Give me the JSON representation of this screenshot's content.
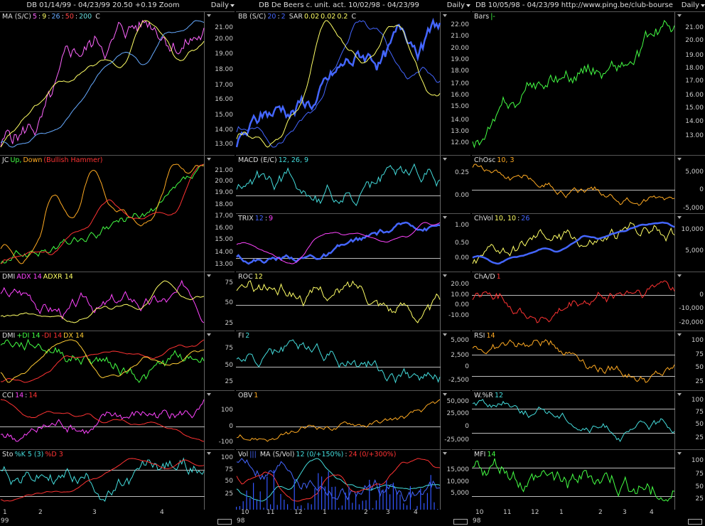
{
  "columns": [
    {
      "header": {
        "title": "DB  01/14/99 - 04/23/99   20.50  +0.19   Zoom",
        "period": "Daily"
      },
      "xaxis": {
        "ticks": [
          "1",
          "2",
          "3",
          "4"
        ],
        "year": "99"
      },
      "panels": [
        {
          "key": "ma",
          "title": [
            {
              "t": "MA (S/C)",
              "c": "#dddddd"
            },
            {
              "t": "5",
              "c": "#ff66ff"
            },
            {
              "t": ":",
              "c": "#dddddd"
            },
            {
              "t": "9",
              "c": "#ffff66"
            },
            {
              "t": ":",
              "c": "#dddddd"
            },
            {
              "t": "26",
              "c": "#66aaff"
            },
            {
              "t": ":",
              "c": "#dddddd"
            },
            {
              "t": "50",
              "c": "#ff4444"
            },
            {
              "t": ":",
              "c": "#dddddd"
            },
            {
              "t": "200",
              "c": "#66dddd"
            },
            {
              "t": "  C",
              "c": "#dddddd"
            }
          ],
          "yticks": [
            "21.00",
            "20.00",
            "19.00",
            "18.00",
            "17.00",
            "16.00",
            "15.00",
            "14.00",
            "13.00"
          ]
        },
        {
          "key": "jc",
          "title": [
            {
              "t": "JC",
              "c": "#dddddd"
            },
            {
              "t": "Up,",
              "c": "#44ff44"
            },
            {
              "t": "Down",
              "c": "#ffaa22"
            },
            {
              "t": "(Bullish Hammer)",
              "c": "#ff3333"
            }
          ],
          "yticks": [
            "21.00",
            "20.00",
            "19.00",
            "18.00",
            "17.00",
            "16.00",
            "15.00",
            "14.00",
            "13.00"
          ]
        },
        {
          "key": "dmi1",
          "title": [
            {
              "t": "DMI",
              "c": "#dddddd"
            },
            {
              "t": "ADX 14",
              "c": "#ff44ff"
            },
            {
              "t": "ADXR 14",
              "c": "#ffff66"
            }
          ],
          "yticks": [
            "75",
            "50",
            "25"
          ]
        },
        {
          "key": "dmi2",
          "title": [
            {
              "t": "DMI",
              "c": "#dddddd"
            },
            {
              "t": "+DI 14",
              "c": "#44ff44"
            },
            {
              "t": "-DI 14",
              "c": "#ff3333"
            },
            {
              "t": "DX 14",
              "c": "#ffcc33"
            }
          ],
          "yticks": [
            "75",
            "50",
            "25"
          ]
        },
        {
          "key": "cci",
          "title": [
            {
              "t": "CCI",
              "c": "#dddddd"
            },
            {
              "t": "14",
              "c": "#ff44ff"
            },
            {
              "t": ":",
              "c": "#dddddd"
            },
            {
              "t": "14",
              "c": "#ff3333"
            }
          ],
          "yticks": [
            "100",
            "0",
            "-100"
          ]
        },
        {
          "key": "sto",
          "title": [
            {
              "t": "Sto",
              "c": "#dddddd"
            },
            {
              "t": "%K 5 (3)",
              "c": "#44dddd"
            },
            {
              "t": "%D 3",
              "c": "#ff3333"
            }
          ],
          "yticks": [
            "100",
            "75",
            "50",
            "25"
          ]
        }
      ]
    },
    {
      "header": {
        "title": "DB  De Beers c. unit. act.   10/02/98 - 04/23/99",
        "period": "Daily"
      },
      "xaxis": {
        "ticks": [
          "10",
          "11",
          "12",
          "1",
          "2",
          "3",
          "4"
        ],
        "year": "98"
      },
      "panels": [
        {
          "key": "bb",
          "title": [
            {
              "t": "BB (S/C)",
              "c": "#dddddd"
            },
            {
              "t": "20",
              "c": "#4466ff"
            },
            {
              "t": ":",
              "c": "#dddddd"
            },
            {
              "t": "2",
              "c": "#4466ff"
            },
            {
              "t": "  SAR",
              "c": "#dddddd"
            },
            {
              "t": "0.02",
              "c": "#ffff66"
            },
            {
              "t": "0.02",
              "c": "#ffff66"
            },
            {
              "t": "0.2",
              "c": "#ffff66"
            },
            {
              "t": "  C",
              "c": "#dddddd"
            }
          ],
          "yticks": [
            "22.00",
            "21.00",
            "20.00",
            "19.00",
            "18.00",
            "17.00",
            "16.00",
            "15.00",
            "14.00",
            "13.00",
            "12.00"
          ]
        },
        {
          "key": "macd",
          "title": [
            {
              "t": "MACD (E/C)",
              "c": "#dddddd"
            },
            {
              "t": "12, 26, 9",
              "c": "#44dddd"
            }
          ],
          "yticks": [
            "0.25",
            "0.00"
          ]
        },
        {
          "key": "trix",
          "title": [
            {
              "t": "TRIX",
              "c": "#dddddd"
            },
            {
              "t": "12",
              "c": "#4466ff"
            },
            {
              "t": ":",
              "c": "#dddddd"
            },
            {
              "t": "9",
              "c": "#ff44ff"
            }
          ],
          "yticks": [
            "1.00",
            "0.50",
            "0.00"
          ]
        },
        {
          "key": "roc",
          "title": [
            {
              "t": "ROC",
              "c": "#dddddd"
            },
            {
              "t": "12",
              "c": "#ffff66"
            }
          ],
          "yticks": [
            "20.00",
            "10.00",
            "0.00",
            "-10.00"
          ]
        },
        {
          "key": "fi",
          "title": [
            {
              "t": "FI",
              "c": "#dddddd"
            },
            {
              "t": "2",
              "c": "#44dddd"
            }
          ],
          "yticks": [
            "5,000",
            "2,500",
            "0",
            "-2,500"
          ]
        },
        {
          "key": "obv",
          "title": [
            {
              "t": "OBV",
              "c": "#dddddd"
            },
            {
              "t": "1",
              "c": "#ffaa22"
            }
          ],
          "yticks": [
            "50,000",
            "25,000",
            "0",
            "-25,000"
          ]
        },
        {
          "key": "vol",
          "title": [
            {
              "t": "Vol",
              "c": "#dddddd"
            },
            {
              "t": "|||",
              "c": "#4466ff"
            },
            {
              "t": "  MA (S/Vol)",
              "c": "#dddddd"
            },
            {
              "t": "12 (0/+150%)",
              "c": "#44dddd"
            },
            {
              "t": ":",
              "c": "#dddddd"
            },
            {
              "t": "24 (0/+300%)",
              "c": "#ff3333"
            }
          ],
          "yticks": [
            "15,000",
            "10,000",
            "5,000"
          ]
        }
      ]
    },
    {
      "header": {
        "title": "DB  10/05/98 - 04/23/99    http://www.ping.be/club-bourse",
        "period": "Daily"
      },
      "xaxis": {
        "ticks": [
          "10",
          "11",
          "12",
          "1",
          "2",
          "3",
          "4"
        ],
        "year": "98"
      },
      "panels": [
        {
          "key": "bars",
          "title": [
            {
              "t": "Bars",
              "c": "#dddddd"
            },
            {
              "t": "|-",
              "c": "#44ff44"
            }
          ],
          "yticks": [
            "21.00",
            "20.00",
            "19.00",
            "18.00",
            "17.00",
            "16.00",
            "15.00",
            "14.00",
            "13.00"
          ]
        },
        {
          "key": "chosc",
          "title": [
            {
              "t": "ChOsc",
              "c": "#dddddd"
            },
            {
              "t": "10, 3",
              "c": "#ffaa22"
            }
          ],
          "yticks": [
            "5,000",
            "0",
            "-5,000"
          ]
        },
        {
          "key": "chvol",
          "title": [
            {
              "t": "ChVol",
              "c": "#dddddd"
            },
            {
              "t": "10, 10",
              "c": "#ffff66"
            },
            {
              "t": ":",
              "c": "#dddddd"
            },
            {
              "t": "26",
              "c": "#4466ff"
            }
          ],
          "yticks": [
            "10,000",
            "5,000"
          ]
        },
        {
          "key": "chad",
          "title": [
            {
              "t": "ChA/D",
              "c": "#dddddd"
            },
            {
              "t": "1",
              "c": "#ff3333"
            }
          ],
          "yticks": [
            "0",
            "-10,000",
            "-20,000"
          ]
        },
        {
          "key": "rsi",
          "title": [
            {
              "t": "RSI",
              "c": "#dddddd"
            },
            {
              "t": "14",
              "c": "#ffaa22"
            }
          ],
          "yticks": [
            "100",
            "75",
            "50",
            "25"
          ]
        },
        {
          "key": "wr",
          "title": [
            {
              "t": "W.%R",
              "c": "#dddddd"
            },
            {
              "t": "12",
              "c": "#44dddd"
            }
          ],
          "yticks": [
            "100",
            "75",
            "50",
            "25"
          ]
        },
        {
          "key": "mfi",
          "title": [
            {
              "t": "MFI",
              "c": "#dddddd"
            },
            {
              "t": "14",
              "c": "#44ff44"
            }
          ],
          "yticks": [
            "100",
            "75",
            "50",
            "25"
          ]
        }
      ]
    }
  ]
}
